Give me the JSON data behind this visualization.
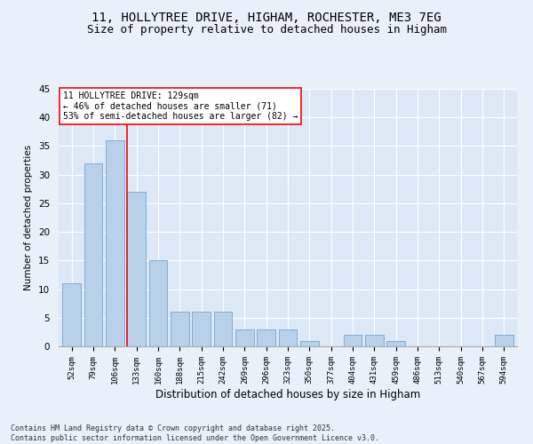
{
  "title_line1": "11, HOLLYTREE DRIVE, HIGHAM, ROCHESTER, ME3 7EG",
  "title_line2": "Size of property relative to detached houses in Higham",
  "categories": [
    "52sqm",
    "79sqm",
    "106sqm",
    "133sqm",
    "160sqm",
    "188sqm",
    "215sqm",
    "242sqm",
    "269sqm",
    "296sqm",
    "323sqm",
    "350sqm",
    "377sqm",
    "404sqm",
    "431sqm",
    "459sqm",
    "486sqm",
    "513sqm",
    "540sqm",
    "567sqm",
    "594sqm"
  ],
  "values": [
    11,
    32,
    36,
    27,
    15,
    6,
    6,
    6,
    3,
    3,
    3,
    1,
    0,
    2,
    2,
    1,
    0,
    0,
    0,
    0,
    2
  ],
  "bar_color": "#b8d0ea",
  "bar_edge_color": "#6699cc",
  "ylabel": "Number of detached properties",
  "xlabel": "Distribution of detached houses by size in Higham",
  "ylim": [
    0,
    45
  ],
  "yticks": [
    0,
    5,
    10,
    15,
    20,
    25,
    30,
    35,
    40,
    45
  ],
  "vline_x_index": 2.57,
  "vline_color": "red",
  "annotation_text": "11 HOLLYTREE DRIVE: 129sqm\n← 46% of detached houses are smaller (71)\n53% of semi-detached houses are larger (82) →",
  "annotation_box_color": "white",
  "annotation_box_edge": "red",
  "footer_line1": "Contains HM Land Registry data © Crown copyright and database right 2025.",
  "footer_line2": "Contains public sector information licensed under the Open Government Licence v3.0.",
  "background_color": "#e8f0fa",
  "plot_background_color": "#dce8f5",
  "title_fontsize": 10,
  "subtitle_fontsize": 9
}
